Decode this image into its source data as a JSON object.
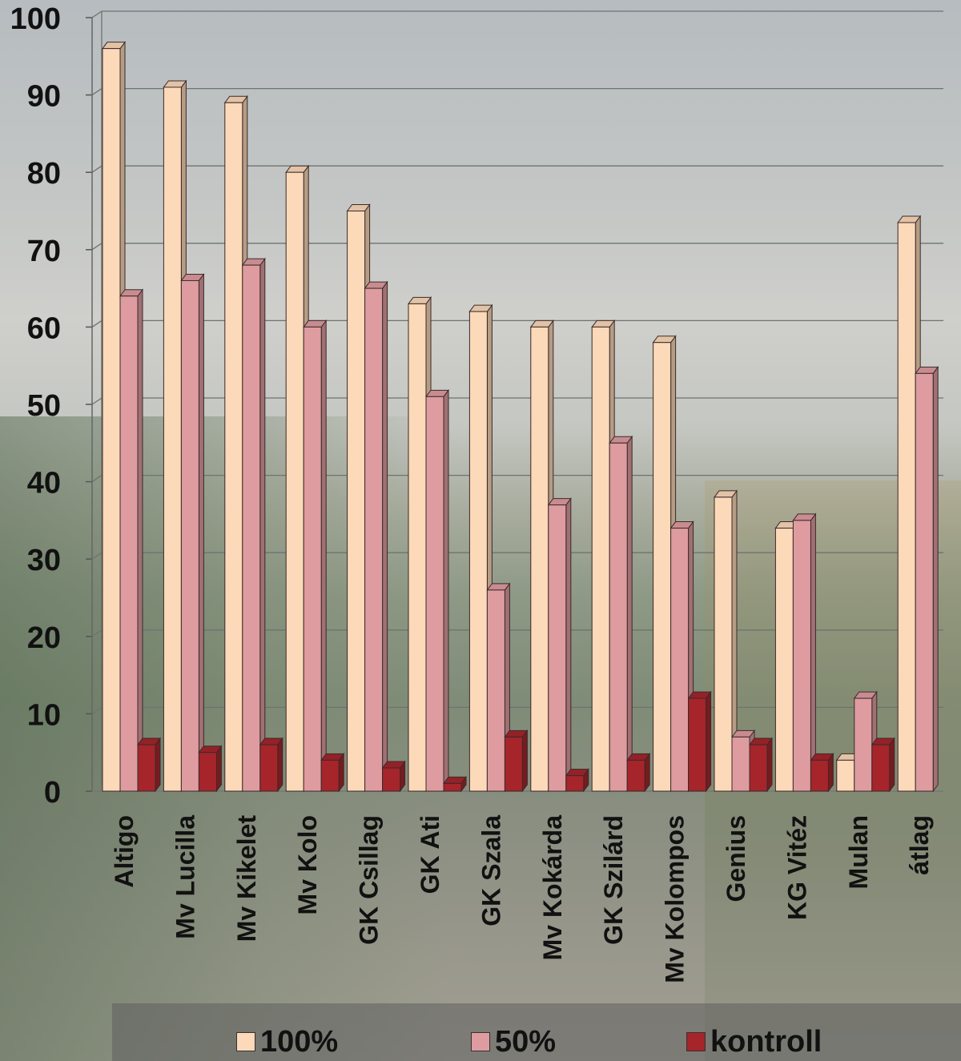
{
  "chart_data": {
    "type": "bar",
    "categories": [
      "Altigo",
      "Mv Lucilla",
      "Mv Kikelet",
      "Mv Kolo",
      "GK Csillag",
      "GK Ati",
      "GK Szala",
      "Mv Kokárda",
      "GK Szilárd",
      "Mv Kolompos",
      "Genius",
      "KG Vitéz",
      "Mulan",
      "átlag"
    ],
    "series": [
      {
        "name": "100%",
        "color": "#fcd9b8",
        "values": [
          96,
          91,
          89,
          80,
          75,
          63,
          62,
          60,
          60,
          58,
          38,
          34,
          4,
          73.5
        ]
      },
      {
        "name": "50%",
        "color": "#de9ca0",
        "values": [
          64,
          66,
          68,
          60,
          65,
          51,
          26,
          37,
          45,
          34,
          7,
          35,
          12,
          54
        ]
      },
      {
        "name": "kontroll",
        "color": "#a5252b",
        "values": [
          6,
          5,
          6,
          4,
          3,
          1,
          7,
          2,
          4,
          12,
          6,
          4,
          6,
          null
        ]
      }
    ],
    "yticks": [
      "0",
      "10",
      "20",
      "30",
      "40",
      "50",
      "60",
      "70",
      "80",
      "90",
      "100"
    ],
    "ylim": [
      0,
      100
    ],
    "grid": true,
    "legend_position": "bottom"
  }
}
